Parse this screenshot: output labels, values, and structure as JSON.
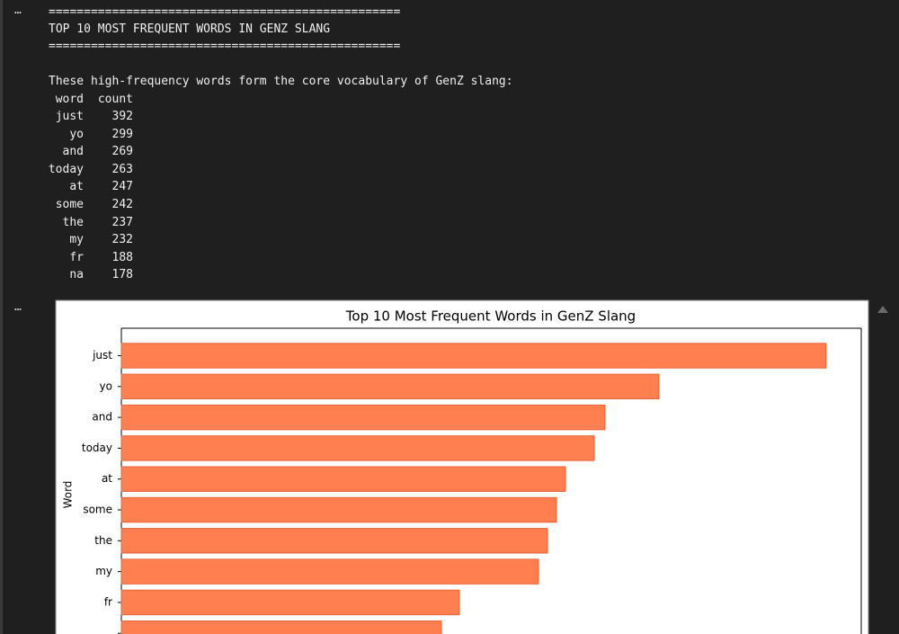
{
  "cell_marker": "…",
  "output": {
    "separator": "==================================================",
    "heading": "TOP 10 MOST FREQUENT WORDS IN GENZ SLANG",
    "intro": "These high-frequency words form the core vocabulary of GenZ slang:",
    "table": {
      "columns": [
        "word",
        "count"
      ],
      "rows": [
        [
          "just",
          "392"
        ],
        [
          "yo",
          "299"
        ],
        [
          "and",
          "269"
        ],
        [
          "today",
          "263"
        ],
        [
          "at",
          "247"
        ],
        [
          "some",
          "242"
        ],
        [
          "the",
          "237"
        ],
        [
          "my",
          "232"
        ],
        [
          "fr",
          "188"
        ],
        [
          "na",
          "178"
        ]
      ]
    }
  },
  "chart_data": {
    "type": "barh",
    "title": "Top 10 Most Frequent Words in GenZ Slang",
    "ylabel": "Word",
    "categories": [
      "just",
      "yo",
      "and",
      "today",
      "at",
      "some",
      "the",
      "my",
      "fr",
      null
    ],
    "values": [
      392,
      299,
      269,
      263,
      247,
      242,
      237,
      232,
      188,
      178
    ],
    "xlim": [
      0,
      411.6
    ],
    "color": "#ff7f50",
    "edgecolor": "#e8643a"
  }
}
